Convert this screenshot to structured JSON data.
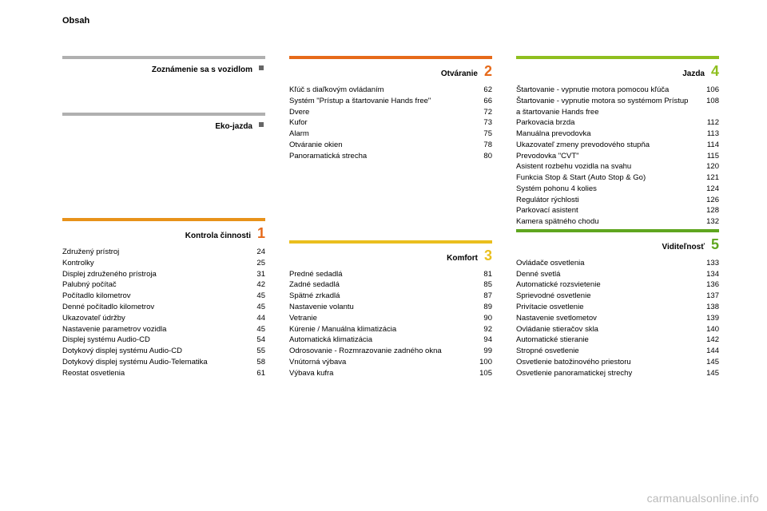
{
  "page_title": "Obsah",
  "watermark": "carmanualsonline.info",
  "colors": {
    "gray": "#b0b0b0",
    "yellow": "#eabf1e",
    "orange": "#e8921a",
    "orangered": "#e66a1a",
    "green": "#8fbf1f",
    "darkgreen": "#5fa61f",
    "num_orange": "#e66a1a",
    "num_yellow": "#eabf1e",
    "num_green": "#8fbf1f"
  },
  "layout": {
    "columns": [
      [
        {
          "bar_color": "#b0b0b0",
          "dot": true,
          "title": "Zoznámenie sa s vozidlom",
          "num": "",
          "num_color": "",
          "entries": [],
          "spacer_after": 38
        },
        {
          "bar_color": "#b0b0b0",
          "dot": true,
          "title": "Eko-jazda",
          "num": "",
          "num_color": "",
          "entries": [],
          "spacer_after": 0,
          "fill_after": true
        },
        {
          "bar_color": "#e8921a",
          "title": "Kontrola činnosti",
          "num": "1",
          "num_color": "#e66a1a",
          "entries": [
            [
              "Združený prístroj",
              "24"
            ],
            [
              "Kontrolky",
              "25"
            ],
            [
              "Displej združeného prístroja",
              "31"
            ],
            [
              "Palubný počítač",
              "42"
            ],
            [
              "Počítadlo kilometrov",
              "45"
            ],
            [
              "Denné počítadlo kilometrov",
              "45"
            ],
            [
              "Ukazovateľ údržby",
              "44"
            ],
            [
              "Nastavenie parametrov vozidla",
              "45"
            ],
            [
              "Displej systému Audio-CD",
              "54"
            ],
            [
              "Dotykový displej systému Audio-CD",
              "55"
            ],
            [
              "Dotykový displej systému Audio-Telematika",
              "58"
            ],
            [
              "Reostat osvetlenia",
              "61"
            ]
          ]
        }
      ],
      [
        {
          "bar_color": "#e66a1a",
          "title": "Otváranie",
          "num": "2",
          "num_color": "#e66a1a",
          "entries": [
            [
              "Kľúč s diaľkovým ovládaním",
              "62"
            ],
            [
              "Systém \"Prístup a štartovanie Hands free\"",
              "66"
            ],
            [
              "Dvere",
              "72"
            ],
            [
              "Kufor",
              "73"
            ],
            [
              "Alarm",
              "75"
            ],
            [
              "Otváranie okien",
              "78"
            ],
            [
              "Panoramatická strecha",
              "80"
            ]
          ],
          "fill_after": true
        },
        {
          "bar_color": "#eabf1e",
          "title": "Komfort",
          "num": "3",
          "num_color": "#eabf1e",
          "entries": [
            [
              "Predné sedadlá",
              "81"
            ],
            [
              "Zadné sedadlá",
              "85"
            ],
            [
              "Spätné zrkadlá",
              "87"
            ],
            [
              "Nastavenie volantu",
              "89"
            ],
            [
              "Vetranie",
              "90"
            ],
            [
              "Kúrenie / Manuálna klimatizácia",
              "92"
            ],
            [
              "Automatická klimatizácia",
              "94"
            ],
            [
              "Odrosovanie - Rozmrazovanie zadného okna",
              "99"
            ],
            [
              "Vnútorná výbava",
              "100"
            ],
            [
              "Výbava kufra",
              "105"
            ]
          ]
        }
      ],
      [
        {
          "bar_color": "#8fbf1f",
          "title": "Jazda",
          "num": "4",
          "num_color": "#8fbf1f",
          "entries": [
            [
              "Štartovanie - vypnutie motora pomocou kľúča",
              "106"
            ],
            [
              "Štartovanie - vypnutie motora so systémom Prístup a štartovanie Hands free",
              "108"
            ],
            [
              "Parkovacia brzda",
              "112"
            ],
            [
              "Manuálna prevodovka",
              "113"
            ],
            [
              "Ukazovateľ zmeny prevodového stupňa",
              "114"
            ],
            [
              "Prevodovka \"CVT\"",
              "115"
            ],
            [
              "Asistent rozbehu vozidla na svahu",
              "120"
            ],
            [
              "Funkcia Stop & Start (Auto Stop & Go)",
              "121"
            ],
            [
              "Systém pohonu 4 kolies",
              "124"
            ],
            [
              "Regulátor rýchlosti",
              "126"
            ],
            [
              "Parkovací asistent",
              "128"
            ],
            [
              "Kamera spätného chodu",
              "132"
            ]
          ],
          "fill_after": true
        },
        {
          "bar_color": "#5fa61f",
          "title": "Viditeľnosť",
          "num": "5",
          "num_color": "#5fa61f",
          "entries": [
            [
              "Ovládače osvetlenia",
              "133"
            ],
            [
              "Denné svetlá",
              "134"
            ],
            [
              "Automatické rozsvietenie",
              "136"
            ],
            [
              "Sprievodné osvetlenie",
              "137"
            ],
            [
              "Privítacie osvetlenie",
              "138"
            ],
            [
              "Nastavenie svetlometov",
              "139"
            ],
            [
              "Ovládanie stieračov skla",
              "140"
            ],
            [
              "Automatické stieranie",
              "142"
            ],
            [
              "Stropné osvetlenie",
              "144"
            ],
            [
              "Osvetlenie batožinového priestoru",
              "145"
            ],
            [
              "Osvetlenie panoramatickej strechy",
              "145"
            ]
          ]
        }
      ]
    ]
  }
}
